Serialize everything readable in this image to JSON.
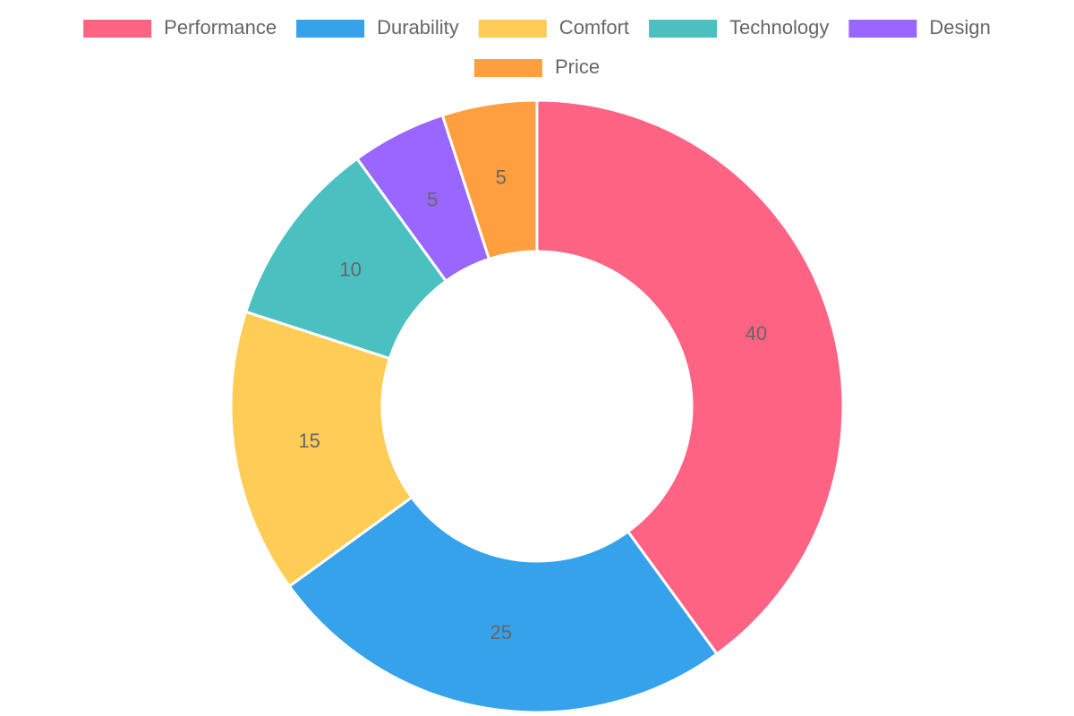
{
  "chart_data": {
    "type": "doughnut",
    "categories": [
      "Performance",
      "Durability",
      "Comfort",
      "Technology",
      "Design",
      "Price"
    ],
    "values": [
      40,
      25,
      15,
      10,
      5,
      5
    ],
    "colors": [
      "#ff6384",
      "#36a2eb",
      "#ffcd56",
      "#4bc0c0",
      "#9966ff",
      "#ff9f40"
    ],
    "legend": "top"
  }
}
